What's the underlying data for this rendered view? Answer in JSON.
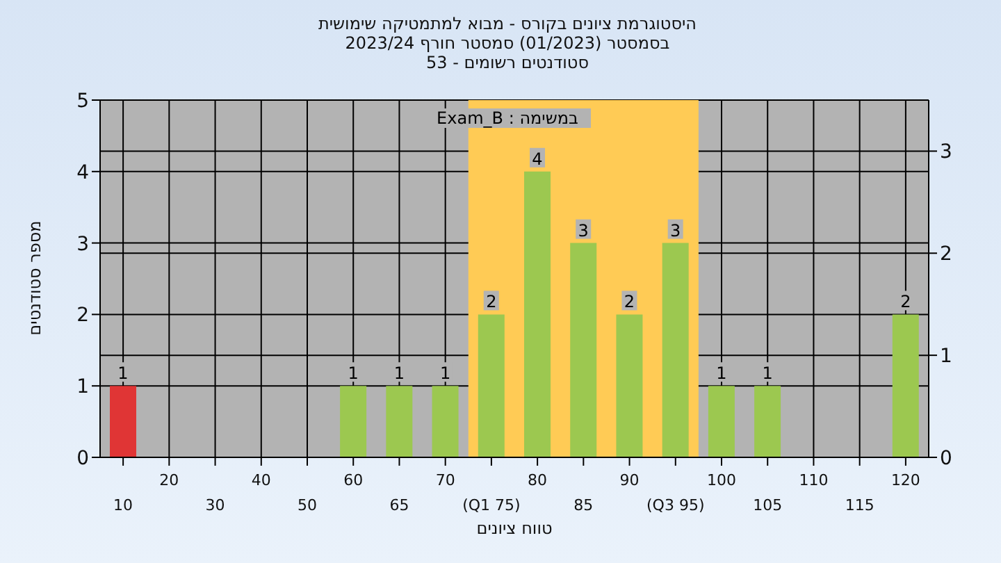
{
  "chart_data": {
    "type": "bar",
    "title": "היסטוגרמת ציונים בקורס - מבוא למתמטיקה שימושית",
    "subtitle": "בסמסטר  (01/2023)  סמסטר חורף 2023/24\nסטודנטים רשומים - 53",
    "xlabel": "טווח ציונים",
    "ylabel": "מספר סטודנטים",
    "annotations": [
      "במשימה : Exam_B"
    ],
    "categories": [
      "10",
      "20",
      "30",
      "40",
      "50",
      "60",
      "65",
      "70",
      "(Q1 75)",
      "80",
      "85",
      "90",
      "(Q3 95)",
      "100",
      "105",
      "110",
      "115",
      "120"
    ],
    "values": [
      1,
      0,
      0,
      0,
      0,
      1,
      1,
      1,
      2,
      4,
      3,
      2,
      3,
      1,
      1,
      0,
      0,
      2
    ],
    "value_labels": [
      "1",
      null,
      null,
      null,
      null,
      "1",
      "1",
      "1",
      "2",
      "4",
      "3",
      "2",
      "3",
      "1",
      "1",
      null,
      null,
      "2"
    ],
    "colors": [
      "#e03535",
      "#9cc850",
      "#9cc850",
      "#9cc850",
      "#9cc850",
      "#9cc850",
      "#9cc850",
      "#9cc850",
      "#9cc850",
      "#9cc850",
      "#9cc850",
      "#9cc850",
      "#9cc850",
      "#9cc850",
      "#9cc850",
      "#9cc850",
      "#9cc850",
      "#9cc850"
    ],
    "ylim": [
      0,
      5
    ],
    "yticks": [
      0,
      1,
      2,
      3,
      4,
      5
    ],
    "y2lim": [
      0,
      3.5
    ],
    "y2ticks": [
      0,
      1,
      2,
      3
    ],
    "bands": [
      {
        "axis": "x",
        "from": "(Q1 75)",
        "to": "(Q3 95)",
        "color": "#ffcb55"
      }
    ],
    "grid": true
  }
}
